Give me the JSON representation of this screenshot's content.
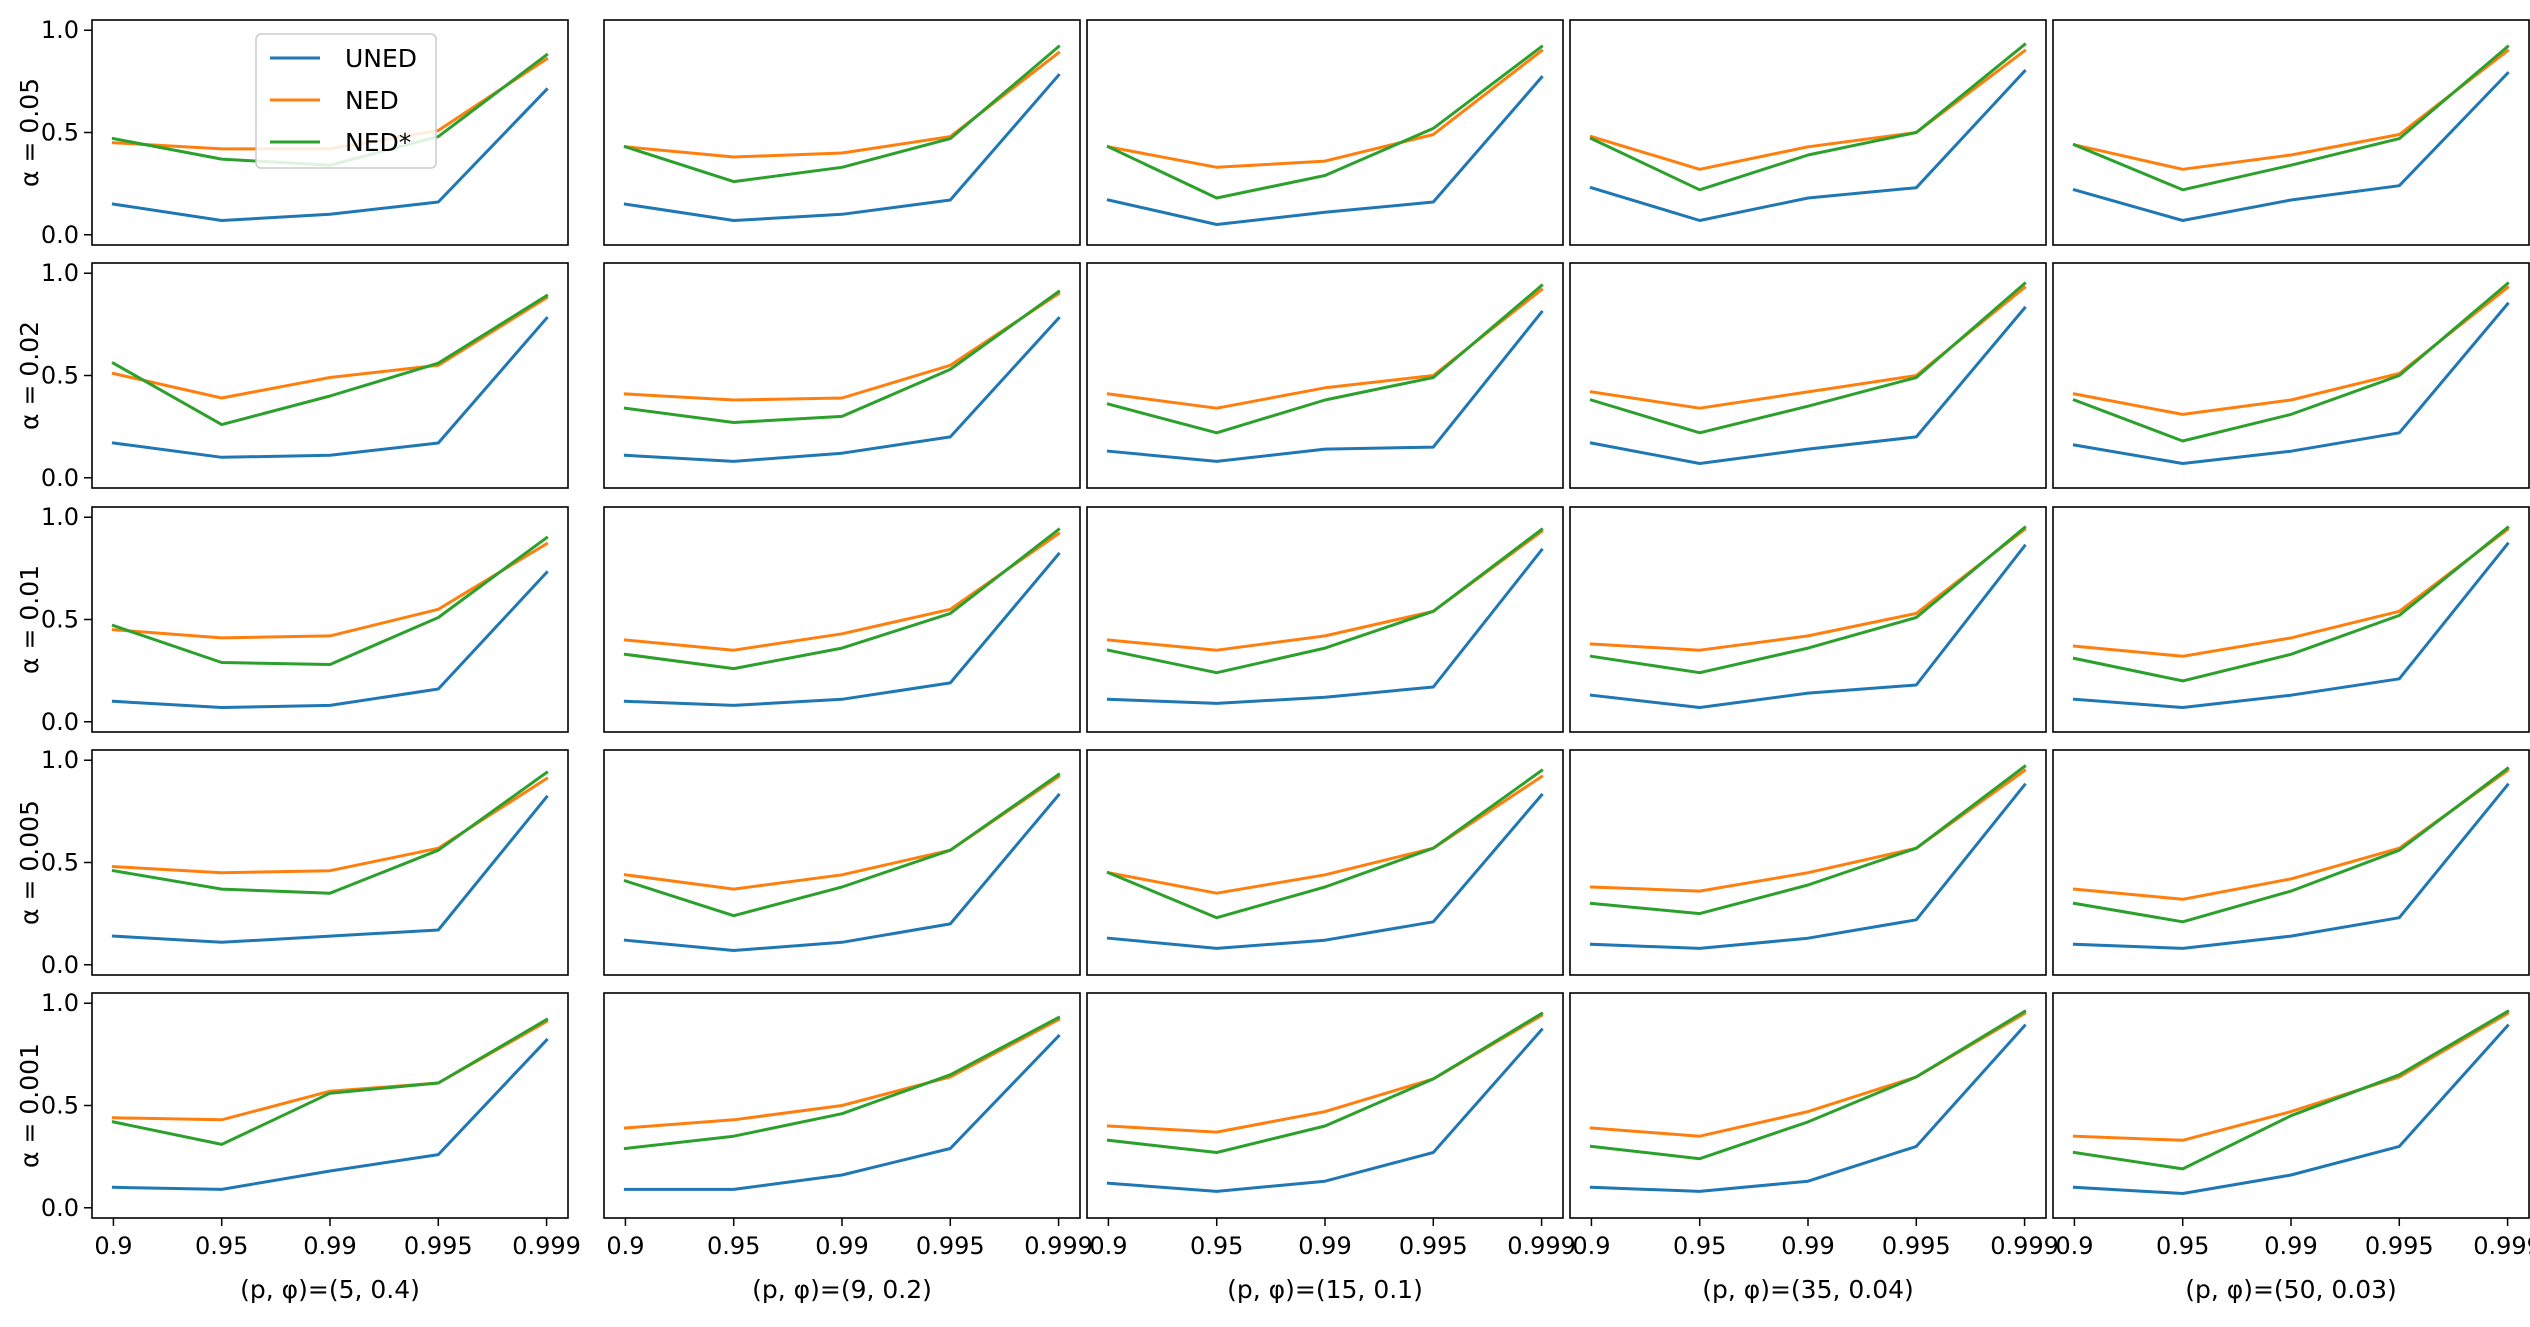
{
  "chart_data": {
    "type": "line",
    "layout": "grid",
    "categories": [
      "0.9",
      "0.95",
      "0.99",
      "0.995",
      "0.999"
    ],
    "ylim": [
      0,
      1
    ],
    "yticks": [
      "0.0",
      "0.5",
      "1.0"
    ],
    "column_labels": [
      "(p, φ)=(5, 0.4)",
      "(p, φ)=(9, 0.2)",
      "(p, φ)=(15, 0.1)",
      "(p, φ)=(35, 0.04)",
      "(p, φ)=(50, 0.03)"
    ],
    "row_labels": [
      "α = 0.05",
      "α = 0.02",
      "α = 0.01",
      "α = 0.005",
      "α = 0.001"
    ],
    "legend": {
      "position": "top-left of first panel",
      "entries": [
        {
          "name": "UNED",
          "color": "#1f77b4"
        },
        {
          "name": "NED",
          "color": "#ff7f0e"
        },
        {
          "name": "NED*",
          "color": "#2ca02c"
        }
      ]
    },
    "series_names": [
      "UNED",
      "NED",
      "NED*"
    ],
    "series_colors": [
      "#1f77b4",
      "#ff7f0e",
      "#2ca02c"
    ],
    "panels": [
      [
        {
          "UNED": [
            0.15,
            0.07,
            0.1,
            0.16,
            0.71
          ],
          "NED": [
            0.45,
            0.42,
            0.42,
            0.51,
            0.86
          ],
          "NED*": [
            0.47,
            0.37,
            0.34,
            0.48,
            0.88
          ]
        },
        {
          "UNED": [
            0.15,
            0.07,
            0.1,
            0.17,
            0.78
          ],
          "NED": [
            0.43,
            0.38,
            0.4,
            0.48,
            0.89
          ],
          "NED*": [
            0.43,
            0.26,
            0.33,
            0.47,
            0.92
          ]
        },
        {
          "UNED": [
            0.17,
            0.05,
            0.11,
            0.16,
            0.77
          ],
          "NED": [
            0.43,
            0.33,
            0.36,
            0.49,
            0.9
          ],
          "NED*": [
            0.43,
            0.18,
            0.29,
            0.52,
            0.92
          ]
        },
        {
          "UNED": [
            0.23,
            0.07,
            0.18,
            0.23,
            0.8
          ],
          "NED": [
            0.48,
            0.32,
            0.43,
            0.5,
            0.9
          ],
          "NED*": [
            0.47,
            0.22,
            0.39,
            0.5,
            0.93
          ]
        },
        {
          "UNED": [
            0.22,
            0.07,
            0.17,
            0.24,
            0.79
          ],
          "NED": [
            0.44,
            0.32,
            0.39,
            0.49,
            0.9
          ],
          "NED*": [
            0.44,
            0.22,
            0.34,
            0.47,
            0.92
          ]
        }
      ],
      [
        {
          "UNED": [
            0.17,
            0.1,
            0.11,
            0.17,
            0.78
          ],
          "NED": [
            0.51,
            0.39,
            0.49,
            0.55,
            0.88
          ],
          "NED*": [
            0.56,
            0.26,
            0.4,
            0.56,
            0.89
          ]
        },
        {
          "UNED": [
            0.11,
            0.08,
            0.12,
            0.2,
            0.78
          ],
          "NED": [
            0.41,
            0.38,
            0.39,
            0.55,
            0.9
          ],
          "NED*": [
            0.34,
            0.27,
            0.3,
            0.53,
            0.91
          ]
        },
        {
          "UNED": [
            0.13,
            0.08,
            0.14,
            0.15,
            0.81
          ],
          "NED": [
            0.41,
            0.34,
            0.44,
            0.5,
            0.92
          ],
          "NED*": [
            0.36,
            0.22,
            0.38,
            0.49,
            0.94
          ]
        },
        {
          "UNED": [
            0.17,
            0.07,
            0.14,
            0.2,
            0.83
          ],
          "NED": [
            0.42,
            0.34,
            0.42,
            0.5,
            0.93
          ],
          "NED*": [
            0.38,
            0.22,
            0.35,
            0.49,
            0.95
          ]
        },
        {
          "UNED": [
            0.16,
            0.07,
            0.13,
            0.22,
            0.85
          ],
          "NED": [
            0.41,
            0.31,
            0.38,
            0.51,
            0.93
          ],
          "NED*": [
            0.38,
            0.18,
            0.31,
            0.5,
            0.95
          ]
        }
      ],
      [
        {
          "UNED": [
            0.1,
            0.07,
            0.08,
            0.16,
            0.73
          ],
          "NED": [
            0.45,
            0.41,
            0.42,
            0.55,
            0.87
          ],
          "NED*": [
            0.47,
            0.29,
            0.28,
            0.51,
            0.9
          ]
        },
        {
          "UNED": [
            0.1,
            0.08,
            0.11,
            0.19,
            0.82
          ],
          "NED": [
            0.4,
            0.35,
            0.43,
            0.55,
            0.92
          ],
          "NED*": [
            0.33,
            0.26,
            0.36,
            0.53,
            0.94
          ]
        },
        {
          "UNED": [
            0.11,
            0.09,
            0.12,
            0.17,
            0.84
          ],
          "NED": [
            0.4,
            0.35,
            0.42,
            0.54,
            0.93
          ],
          "NED*": [
            0.35,
            0.24,
            0.36,
            0.54,
            0.94
          ]
        },
        {
          "UNED": [
            0.13,
            0.07,
            0.14,
            0.18,
            0.86
          ],
          "NED": [
            0.38,
            0.35,
            0.42,
            0.53,
            0.94
          ],
          "NED*": [
            0.32,
            0.24,
            0.36,
            0.51,
            0.95
          ]
        },
        {
          "UNED": [
            0.11,
            0.07,
            0.13,
            0.21,
            0.87
          ],
          "NED": [
            0.37,
            0.32,
            0.41,
            0.54,
            0.94
          ],
          "NED*": [
            0.31,
            0.2,
            0.33,
            0.52,
            0.95
          ]
        }
      ],
      [
        {
          "UNED": [
            0.14,
            0.11,
            0.14,
            0.17,
            0.82
          ],
          "NED": [
            0.48,
            0.45,
            0.46,
            0.57,
            0.91
          ],
          "NED*": [
            0.46,
            0.37,
            0.35,
            0.56,
            0.94
          ]
        },
        {
          "UNED": [
            0.12,
            0.07,
            0.11,
            0.2,
            0.83
          ],
          "NED": [
            0.44,
            0.37,
            0.44,
            0.56,
            0.92
          ],
          "NED*": [
            0.41,
            0.24,
            0.38,
            0.56,
            0.93
          ]
        },
        {
          "UNED": [
            0.13,
            0.08,
            0.12,
            0.21,
            0.83
          ],
          "NED": [
            0.45,
            0.35,
            0.44,
            0.57,
            0.92
          ],
          "NED*": [
            0.45,
            0.23,
            0.38,
            0.57,
            0.95
          ]
        },
        {
          "UNED": [
            0.1,
            0.08,
            0.13,
            0.22,
            0.88
          ],
          "NED": [
            0.38,
            0.36,
            0.45,
            0.57,
            0.95
          ],
          "NED*": [
            0.3,
            0.25,
            0.39,
            0.57,
            0.97
          ]
        },
        {
          "UNED": [
            0.1,
            0.08,
            0.14,
            0.23,
            0.88
          ],
          "NED": [
            0.37,
            0.32,
            0.42,
            0.57,
            0.95
          ],
          "NED*": [
            0.3,
            0.21,
            0.36,
            0.56,
            0.96
          ]
        }
      ],
      [
        {
          "UNED": [
            0.1,
            0.09,
            0.18,
            0.26,
            0.82
          ],
          "NED": [
            0.44,
            0.43,
            0.57,
            0.61,
            0.91
          ],
          "NED*": [
            0.42,
            0.31,
            0.56,
            0.61,
            0.92
          ]
        },
        {
          "UNED": [
            0.09,
            0.09,
            0.16,
            0.29,
            0.84
          ],
          "NED": [
            0.39,
            0.43,
            0.5,
            0.64,
            0.92
          ],
          "NED*": [
            0.29,
            0.35,
            0.46,
            0.65,
            0.93
          ]
        },
        {
          "UNED": [
            0.12,
            0.08,
            0.13,
            0.27,
            0.87
          ],
          "NED": [
            0.4,
            0.37,
            0.47,
            0.63,
            0.94
          ],
          "NED*": [
            0.33,
            0.27,
            0.4,
            0.63,
            0.95
          ]
        },
        {
          "UNED": [
            0.1,
            0.08,
            0.13,
            0.3,
            0.89
          ],
          "NED": [
            0.39,
            0.35,
            0.47,
            0.64,
            0.95
          ],
          "NED*": [
            0.3,
            0.24,
            0.42,
            0.64,
            0.96
          ]
        },
        {
          "UNED": [
            0.1,
            0.07,
            0.16,
            0.3,
            0.89
          ],
          "NED": [
            0.35,
            0.33,
            0.47,
            0.64,
            0.95
          ],
          "NED*": [
            0.27,
            0.19,
            0.45,
            0.65,
            0.96
          ]
        }
      ]
    ]
  }
}
